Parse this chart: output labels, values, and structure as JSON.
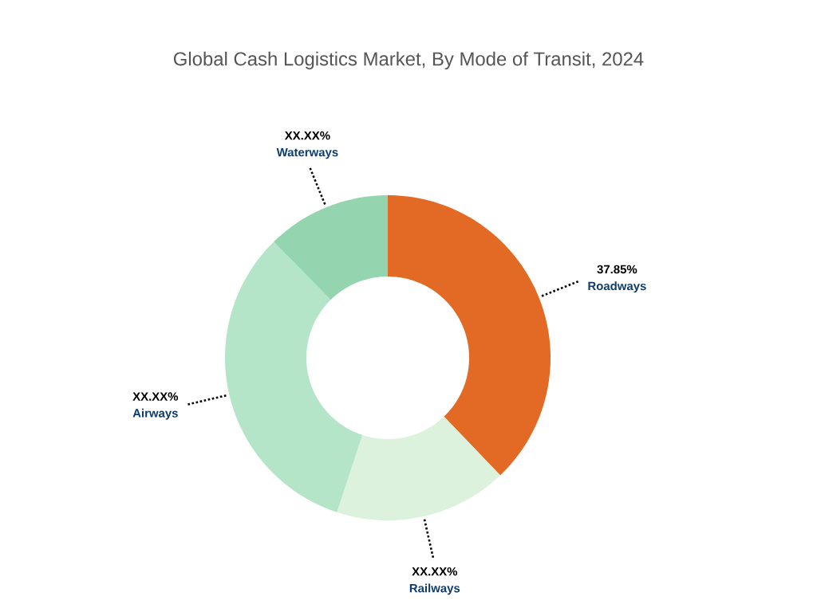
{
  "chart_data": {
    "type": "donut",
    "title": "Global Cash Logistics Market, By Mode of Transit, 2024",
    "categories": [
      "Roadways",
      "Railways",
      "Airways",
      "Waterways"
    ],
    "values": [
      37.85,
      17.2,
      32.6,
      12.35
    ],
    "colors": [
      "#e36a25",
      "#dcf2dd",
      "#b5e5c8",
      "#94d5b0"
    ],
    "value_labels": [
      "37.85%",
      "XX.XX%",
      "XX.XX%",
      "XX.XX%"
    ]
  }
}
